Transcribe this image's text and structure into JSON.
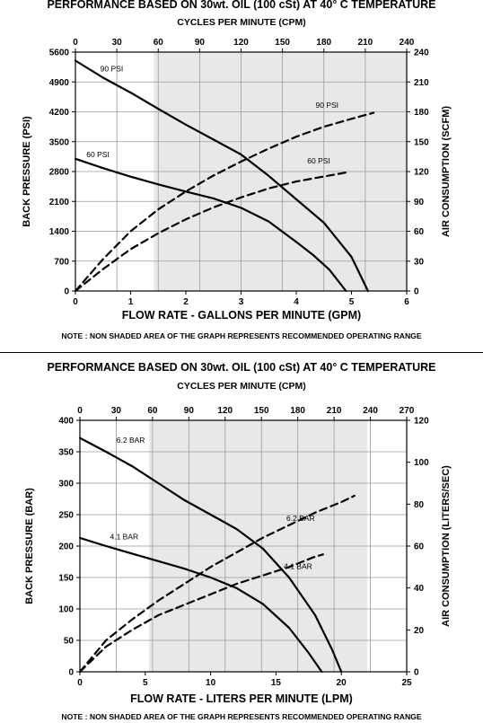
{
  "chart_data": [
    {
      "type": "line",
      "title": "PERFORMANCE  BASED ON 30wt. OIL (100 cSt) AT 40° C TEMPERATURE",
      "x2label": "CYCLES PER MINUTE (CPM)",
      "xlabel": "FLOW RATE - GALLONS PER MINUTE (GPM)",
      "ylabel": "BACK PRESSURE  (PSI)",
      "y2label": "AIR CONSUMPTION  (SCFM)",
      "note": "NOTE : NON SHADED AREA OF THE GRAPH REPRESENTS RECOMMENDED OPERATING RANGE",
      "xlim": [
        0,
        6
      ],
      "ylim": [
        0,
        5600
      ],
      "x2lim": [
        0,
        240
      ],
      "y2lim": [
        0,
        240
      ],
      "xticks": [
        "0",
        "1",
        "2",
        "3",
        "4",
        "5",
        "6"
      ],
      "yticks": [
        "0",
        "700",
        "1400",
        "2100",
        "2800",
        "3500",
        "4200",
        "4900",
        "5600"
      ],
      "x2ticks": [
        "0",
        "30",
        "60",
        "90",
        "120",
        "150",
        "180",
        "210",
        "240"
      ],
      "y2ticks": [
        "0",
        "30",
        "60",
        "90",
        "120",
        "150",
        "180",
        "210",
        "240"
      ],
      "grid": true,
      "shaded_region_x_from": 1.42,
      "series": [
        {
          "name": "90 PSI",
          "axis": "left",
          "style": "solid",
          "x": [
            0,
            0.5,
            1,
            1.5,
            2,
            2.5,
            3,
            3.5,
            4,
            4.5,
            5,
            5.3
          ],
          "y": [
            5400,
            5000,
            4650,
            4270,
            3900,
            3550,
            3200,
            2700,
            2150,
            1600,
            800,
            0
          ]
        },
        {
          "name": "60 PSI",
          "axis": "left",
          "style": "solid",
          "x": [
            0,
            0.5,
            1,
            1.5,
            2,
            2.5,
            3,
            3.5,
            4,
            4.3,
            4.6,
            4.9
          ],
          "y": [
            3100,
            2880,
            2680,
            2500,
            2330,
            2170,
            1950,
            1630,
            1150,
            850,
            500,
            0
          ]
        },
        {
          "name": "90 PSI",
          "axis": "right",
          "style": "dashed",
          "x": [
            0,
            0.5,
            1,
            1.5,
            2,
            2.5,
            3,
            3.5,
            4,
            4.5,
            5,
            5.4
          ],
          "y": [
            0,
            32,
            60,
            82,
            100,
            116,
            130,
            143,
            155,
            165,
            173,
            179
          ]
        },
        {
          "name": "60 PSI",
          "axis": "right",
          "style": "dashed",
          "x": [
            0,
            0.5,
            1,
            1.5,
            2,
            2.5,
            3,
            3.5,
            4,
            4.5,
            4.9
          ],
          "y": [
            0,
            22,
            42,
            58,
            72,
            84,
            94,
            103,
            110,
            115,
            119
          ]
        }
      ]
    },
    {
      "type": "line",
      "title": "PERFORMANCE  BASED ON 30wt. OIL (100 cSt) AT 40° C TEMPERATURE",
      "x2label": "CYCLES PER MINUTE (CPM)",
      "xlabel": "FLOW RATE - LITERS PER MINUTE (LPM)",
      "ylabel": "BACK PRESSURE  (BAR)",
      "y2label": "AIR CONSUMPTION  (LITERS/SEC)",
      "note": "NOTE : NON SHADED AREA OF THE GRAPH REPRESENTS RECOMMENDED OPERATING RANGE",
      "xlim": [
        0,
        25
      ],
      "ylim": [
        0,
        400
      ],
      "x2lim": [
        0,
        270
      ],
      "y2lim": [
        0,
        120
      ],
      "xticks": [
        "0",
        "5",
        "10",
        "15",
        "20",
        "25"
      ],
      "yticks": [
        "0",
        "50",
        "100",
        "150",
        "200",
        "250",
        "300",
        "350",
        "400"
      ],
      "x2ticks": [
        "0",
        "30",
        "60",
        "90",
        "120",
        "150",
        "180",
        "210",
        "240",
        "270"
      ],
      "y2ticks": [
        "0",
        "20",
        "40",
        "60",
        "80",
        "100",
        "120"
      ],
      "grid": true,
      "shaded_region_x_from": 5.3,
      "shaded_region_x_to": 22,
      "series": [
        {
          "name": "6.2 BAR",
          "axis": "left",
          "style": "solid",
          "x": [
            0,
            2,
            4,
            6,
            8,
            10,
            12,
            14,
            16,
            18,
            19.3,
            20
          ],
          "y": [
            372,
            350,
            327,
            300,
            273,
            250,
            227,
            196,
            150,
            90,
            35,
            0
          ]
        },
        {
          "name": "4.1 BAR",
          "axis": "left",
          "style": "solid",
          "x": [
            0,
            2,
            4,
            6,
            8,
            10,
            12,
            14,
            16,
            17.5,
            18.5
          ],
          "y": [
            213,
            200,
            188,
            176,
            164,
            150,
            133,
            108,
            70,
            30,
            0
          ]
        },
        {
          "name": "6.2 BAR",
          "axis": "right",
          "style": "dashed",
          "x": [
            0,
            2,
            4,
            6,
            8,
            10,
            12,
            14,
            16,
            18,
            20,
            21
          ],
          "y": [
            0,
            15,
            25,
            34,
            42,
            50,
            57,
            64,
            70,
            76,
            81,
            84
          ]
        },
        {
          "name": "4.1 BAR",
          "axis": "right",
          "style": "dashed",
          "x": [
            0,
            2,
            4,
            6,
            8,
            10,
            12,
            14,
            16,
            18,
            18.6
          ],
          "y": [
            0,
            12,
            20,
            27,
            32,
            37,
            42,
            46,
            50,
            55,
            56
          ]
        }
      ]
    }
  ],
  "series_label_positions": [
    {
      "s0": {
        "x": 0.45,
        "y": 5150
      },
      "s1": {
        "x": 0.2,
        "y": 3140
      },
      "s2": {
        "x": 4.35,
        "y": 184
      },
      "s3": {
        "x": 4.2,
        "y": 128
      }
    },
    {
      "s0": {
        "x": 2.8,
        "y": 364
      },
      "s1": {
        "x": 2.3,
        "y": 211
      },
      "s2": {
        "x": 15.8,
        "y": 72
      },
      "s3": {
        "x": 15.6,
        "y": 49
      }
    }
  ]
}
